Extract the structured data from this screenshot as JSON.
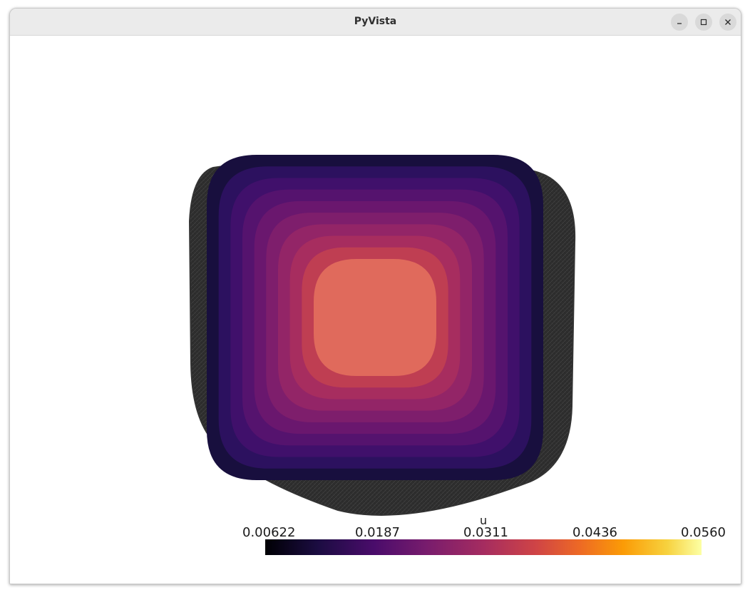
{
  "window": {
    "title": "PyVista",
    "buttons": {
      "minimize": "minimize",
      "maximize": "maximize",
      "close": "close"
    }
  },
  "plot": {
    "background": "#ffffff",
    "colormap": "inferno",
    "contour_band_colors": [
      "#180f3e",
      "#2c115f",
      "#40106b",
      "#55136e",
      "#6a176e",
      "#7e1e6c",
      "#932567",
      "#a72d5f",
      "#bf3e52",
      "#e06a5c"
    ],
    "mesh_edge_color": "#333333"
  },
  "scalar_bar": {
    "title": "u",
    "tick_labels": [
      "0.00622",
      "0.0187",
      "0.0311",
      "0.0436",
      "0.0560"
    ],
    "min": 0.00622,
    "max": 0.056
  }
}
